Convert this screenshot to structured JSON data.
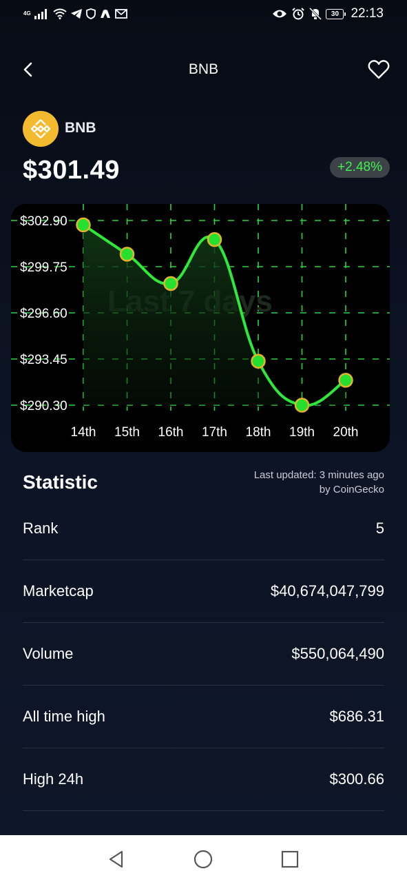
{
  "status_bar": {
    "network_type": "4G",
    "time": "22:13",
    "battery": "30"
  },
  "header": {
    "title": "BNB"
  },
  "coin": {
    "name": "BNB",
    "price": "$301.49",
    "change": "+2.48%",
    "logo_color": "#f3ba2f",
    "change_color": "#3ef04e"
  },
  "chart_data": {
    "type": "line",
    "watermark": "Last 7 days",
    "x": [
      "14th",
      "15th",
      "16th",
      "17th",
      "18th",
      "19th",
      "20th"
    ],
    "y_ticks": [
      "$302.90",
      "$299.75",
      "$296.60",
      "$293.45",
      "$290.30"
    ],
    "y_tick_values": [
      302.9,
      299.75,
      296.6,
      293.45,
      290.3
    ],
    "series": [
      {
        "values": [
          302.6,
          300.6,
          298.6,
          301.6,
          293.3,
          290.3,
          292.0
        ]
      }
    ],
    "ylim": [
      290.3,
      302.9
    ],
    "grid": true,
    "line_color": "#2ee83a",
    "marker_color": "#26e02f",
    "marker_edge_color": "#e2b52d"
  },
  "statistics": {
    "heading": "Statistic",
    "updated": "Last updated: 3 minutes ago",
    "source": "by CoinGecko",
    "rows": [
      {
        "label": "Rank",
        "value": "5"
      },
      {
        "label": "Marketcap",
        "value": "$40,674,047,799"
      },
      {
        "label": "Volume",
        "value": "$550,064,490"
      },
      {
        "label": "All time high",
        "value": "$686.31"
      },
      {
        "label": "High 24h",
        "value": "$300.66"
      }
    ]
  },
  "nav_bar": {
    "icons": [
      "back-triangle-icon",
      "home-circle-icon",
      "recents-square-icon"
    ]
  }
}
